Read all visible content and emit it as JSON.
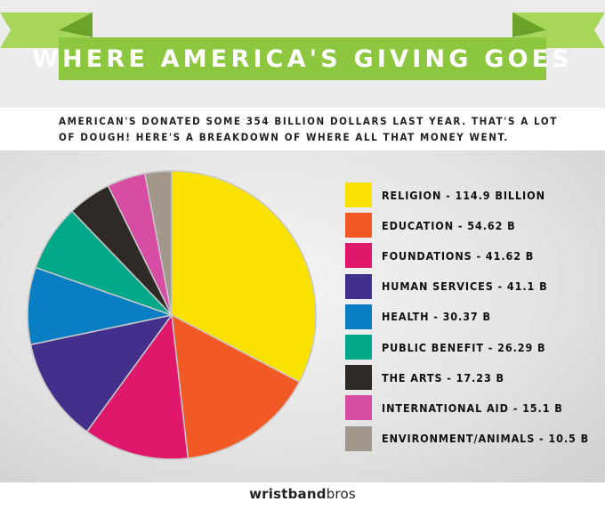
{
  "title": "WHERE AMERICA'S GIVING GOES",
  "intro": {
    "line1": "AMERICAN'S DONATED SOME 354 BILLION DOLLARS LAST YEAR. THAT'S A LOT",
    "line2": "OF DOUGH! HERE'S A BREAKDOWN OF WHERE ALL THAT MONEY WENT."
  },
  "logo": {
    "part1": "wristband",
    "part2": "bros"
  },
  "colors": {
    "banner": "#8dc63f",
    "banner_dark": "#6aa22a",
    "banner_light": "#a8d65a"
  },
  "chart_data": {
    "type": "pie",
    "legend_position": "right",
    "slices": [
      {
        "label": "RELIGION - 114.9 BILLION",
        "name": "Religion",
        "value": 114.9,
        "color": "#f9e200"
      },
      {
        "label": "EDUCATION - 54.62 B",
        "name": "Education",
        "value": 54.62,
        "color": "#f15a24"
      },
      {
        "label": "FOUNDATIONS - 41.62 B",
        "name": "Foundations",
        "value": 41.62,
        "color": "#e0186c"
      },
      {
        "label": "HUMAN SERVICES - 41.1 B",
        "name": "Human Services",
        "value": 41.1,
        "color": "#43308c"
      },
      {
        "label": "HEALTH - 30.37 B",
        "name": "Health",
        "value": 30.37,
        "color": "#0a7ec2"
      },
      {
        "label": "PUBLIC BENEFIT - 26.29 B",
        "name": "Public Benefit",
        "value": 26.29,
        "color": "#00a88a"
      },
      {
        "label": "THE ARTS - 17.23 B",
        "name": "The Arts",
        "value": 17.23,
        "color": "#2f2a26"
      },
      {
        "label": "INTERNATIONAL AID - 15.1 B",
        "name": "International Aid",
        "value": 15.1,
        "color": "#d64da3"
      },
      {
        "label": "ENVIRONMENT/ANIMALS - 10.5 B",
        "name": "Environment/Animals",
        "value": 10.5,
        "color": "#a3978c"
      }
    ]
  }
}
